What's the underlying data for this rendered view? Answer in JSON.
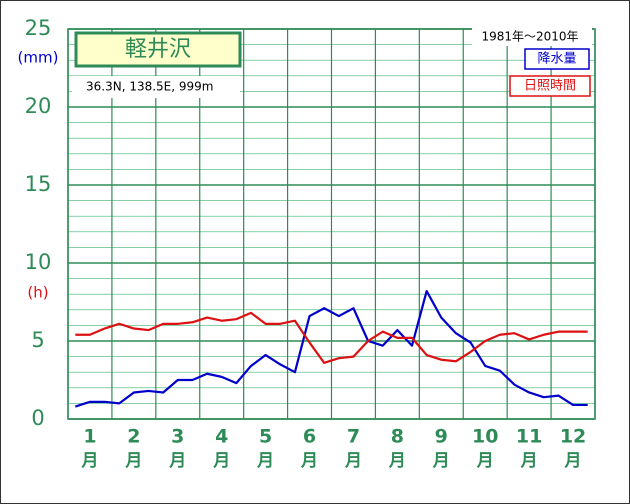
{
  "chart_data": {
    "type": "line",
    "title": "軽井沢",
    "subtitle": "36.3N,  138.5E,  999m",
    "period": "1981年〜2010年",
    "y_unit_left": "(mm)",
    "y_unit_right": "(h)",
    "x_unit": "月",
    "x": [
      0.667,
      1,
      1.333,
      1.667,
      2,
      2.333,
      2.667,
      3,
      3.333,
      3.667,
      4,
      4.333,
      4.667,
      5,
      5.333,
      5.667,
      6,
      6.333,
      6.667,
      7,
      7.333,
      7.667,
      8,
      8.333,
      8.667,
      9,
      9.333,
      9.667,
      10,
      10.333,
      10.667,
      11,
      11.333,
      11.667,
      12,
      12.333
    ],
    "series": [
      {
        "name": "降水量",
        "color": "#0000cc",
        "values": [
          0.8,
          1.1,
          1.1,
          1.0,
          1.7,
          1.8,
          1.7,
          2.5,
          2.5,
          2.9,
          2.7,
          2.3,
          3.4,
          4.1,
          3.5,
          3.0,
          6.6,
          7.1,
          6.6,
          7.1,
          5.0,
          4.7,
          5.7,
          4.7,
          8.2,
          6.5,
          5.5,
          4.9,
          3.4,
          3.1,
          2.2,
          1.7,
          1.4,
          1.5,
          0.9,
          0.9
        ]
      },
      {
        "name": "日照時間",
        "color": "#dd1111",
        "values": [
          5.4,
          5.4,
          5.8,
          6.1,
          5.8,
          5.7,
          6.1,
          6.1,
          6.2,
          6.5,
          6.3,
          6.4,
          6.8,
          6.1,
          6.1,
          6.3,
          4.9,
          3.6,
          3.9,
          4.0,
          5.0,
          5.6,
          5.2,
          5.2,
          4.1,
          3.8,
          3.7,
          4.3,
          5.0,
          5.4,
          5.5,
          5.1,
          5.4,
          5.6,
          5.6,
          5.6
        ]
      }
    ],
    "xlim": [
      0.5,
      12.5
    ],
    "xticks": [
      1,
      2,
      3,
      4,
      5,
      6,
      7,
      8,
      9,
      10,
      11,
      12
    ],
    "ylim": [
      0,
      25
    ],
    "yticks": [
      0,
      5,
      10,
      15,
      20,
      25
    ],
    "minor_grid": 1,
    "grid": true
  }
}
